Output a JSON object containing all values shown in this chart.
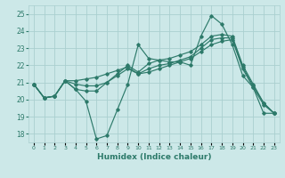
{
  "xlabel": "Humidex (Indice chaleur)",
  "xlim": [
    -0.5,
    23.5
  ],
  "ylim": [
    17.5,
    25.5
  ],
  "yticks": [
    18,
    19,
    20,
    21,
    22,
    23,
    24,
    25
  ],
  "xticks": [
    0,
    1,
    2,
    3,
    4,
    5,
    6,
    7,
    8,
    9,
    10,
    11,
    12,
    13,
    14,
    15,
    16,
    17,
    18,
    19,
    20,
    21,
    22,
    23
  ],
  "bg_color": "#cce8e8",
  "grid_color": "#aacfcf",
  "line_color": "#2d7a6a",
  "series": [
    [
      20.9,
      20.1,
      20.2,
      21.1,
      20.6,
      19.9,
      17.7,
      17.9,
      19.4,
      20.9,
      23.2,
      22.4,
      22.3,
      22.2,
      22.2,
      22.0,
      23.7,
      24.9,
      24.4,
      23.2,
      21.4,
      20.7,
      19.2,
      19.2
    ],
    [
      20.9,
      20.1,
      20.2,
      21.1,
      20.6,
      20.5,
      20.5,
      21.0,
      21.5,
      22.0,
      21.6,
      22.1,
      22.3,
      22.4,
      22.6,
      22.8,
      23.2,
      23.7,
      23.8,
      23.7,
      22.0,
      20.9,
      19.8,
      19.2
    ],
    [
      20.9,
      20.1,
      20.2,
      21.1,
      20.9,
      20.8,
      20.8,
      21.0,
      21.4,
      21.8,
      21.5,
      21.8,
      22.0,
      22.1,
      22.3,
      22.5,
      23.0,
      23.5,
      23.6,
      23.6,
      21.9,
      20.8,
      19.8,
      19.2
    ],
    [
      20.9,
      20.1,
      20.2,
      21.1,
      21.1,
      21.2,
      21.3,
      21.5,
      21.7,
      21.9,
      21.5,
      21.6,
      21.8,
      22.0,
      22.2,
      22.4,
      22.8,
      23.2,
      23.4,
      23.5,
      21.8,
      20.7,
      19.7,
      19.2
    ]
  ]
}
